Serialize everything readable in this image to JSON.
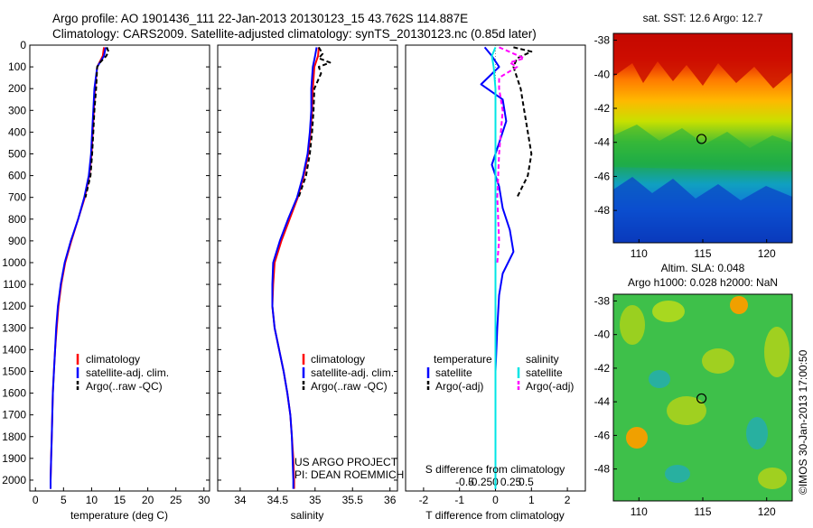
{
  "header": {
    "line1": "Argo profile: AO 1901436_111 22-Jan-2013 20130123_15 43.762S 114.887E",
    "line2": "Climatology: CARS2009. Satellite-adjusted climatology: synTS_20130123.nc (0.85d later)"
  },
  "colors": {
    "climatology": "#ff0000",
    "satellite": "#0000ff",
    "argo": "#000000",
    "sal_satellite": "#00e5e5",
    "sal_argo": "#ff00ff"
  },
  "chart_data": [
    {
      "type": "line",
      "name": "temperature-profile",
      "xlabel": "temperature (deg C)",
      "ylabel": "",
      "xlim": [
        -1,
        31
      ],
      "ylim": [
        2050,
        0
      ],
      "xticks": [
        0,
        5,
        10,
        15,
        20,
        25,
        30
      ],
      "yticks": [
        0,
        100,
        200,
        300,
        400,
        500,
        600,
        700,
        800,
        900,
        1000,
        1100,
        1200,
        1300,
        1400,
        1500,
        1600,
        1700,
        1800,
        1900,
        2000
      ],
      "legend": [
        "climatology",
        "satellite-adj. clim.",
        "Argo(..raw -QC)"
      ],
      "series": [
        {
          "name": "climatology",
          "color": "#ff0000",
          "dash": "",
          "points": [
            [
              12.2,
              10
            ],
            [
              12.0,
              50
            ],
            [
              11.0,
              100
            ],
            [
              10.6,
              200
            ],
            [
              10.4,
              300
            ],
            [
              10.2,
              400
            ],
            [
              10.0,
              500
            ],
            [
              9.6,
              600
            ],
            [
              8.8,
              700
            ],
            [
              7.6,
              800
            ],
            [
              6.4,
              900
            ],
            [
              5.3,
              1000
            ],
            [
              4.6,
              1100
            ],
            [
              4.1,
              1200
            ],
            [
              3.8,
              1300
            ],
            [
              3.5,
              1400
            ],
            [
              3.3,
              1500
            ],
            [
              3.1,
              1600
            ],
            [
              3.0,
              1700
            ],
            [
              2.9,
              1800
            ],
            [
              2.8,
              1900
            ],
            [
              2.7,
              2000
            ],
            [
              2.7,
              2040
            ]
          ]
        },
        {
          "name": "satellite-adj. clim.",
          "color": "#0000ff",
          "dash": "",
          "points": [
            [
              12.5,
              10
            ],
            [
              12.2,
              50
            ],
            [
              11.0,
              100
            ],
            [
              10.5,
              200
            ],
            [
              10.3,
              300
            ],
            [
              10.1,
              400
            ],
            [
              9.9,
              500
            ],
            [
              9.5,
              600
            ],
            [
              8.7,
              700
            ],
            [
              7.6,
              800
            ],
            [
              6.3,
              900
            ],
            [
              5.2,
              1000
            ],
            [
              4.5,
              1100
            ],
            [
              4.0,
              1200
            ],
            [
              3.7,
              1300
            ],
            [
              3.5,
              1400
            ],
            [
              3.3,
              1500
            ],
            [
              3.1,
              1600
            ],
            [
              3.0,
              1700
            ],
            [
              2.9,
              1800
            ],
            [
              2.8,
              1900
            ],
            [
              2.7,
              2000
            ],
            [
              2.7,
              2040
            ]
          ]
        },
        {
          "name": "Argo(..raw -QC)",
          "color": "#000000",
          "dash": "5,3",
          "points": [
            [
              12.7,
              10
            ],
            [
              13.0,
              30
            ],
            [
              12.6,
              50
            ],
            [
              11.5,
              80
            ],
            [
              11.0,
              100
            ],
            [
              10.8,
              200
            ],
            [
              10.5,
              300
            ],
            [
              10.3,
              400
            ],
            [
              10.1,
              500
            ],
            [
              9.8,
              600
            ],
            [
              8.9,
              700
            ]
          ]
        }
      ]
    },
    {
      "type": "line",
      "name": "salinity-profile",
      "xlabel": "salinity",
      "ylabel": "",
      "xlim": [
        33.7,
        36.1
      ],
      "ylim": [
        2050,
        0
      ],
      "xticks": [
        34,
        34.5,
        35,
        35.5,
        36
      ],
      "xtick_labels": [
        "34",
        "34.5",
        "35",
        "35.5",
        "36"
      ],
      "legend": [
        "climatology",
        "satellite-adj. clim.",
        "Argo(..raw -QC)"
      ],
      "annotation": [
        "US ARGO PROJECT",
        "PI: DEAN ROEMMICH"
      ],
      "series": [
        {
          "name": "climatology",
          "color": "#ff0000",
          "dash": "",
          "points": [
            [
              35.05,
              10
            ],
            [
              35.04,
              50
            ],
            [
              34.99,
              100
            ],
            [
              34.97,
              200
            ],
            [
              34.96,
              300
            ],
            [
              34.94,
              400
            ],
            [
              34.91,
              500
            ],
            [
              34.85,
              600
            ],
            [
              34.77,
              700
            ],
            [
              34.66,
              800
            ],
            [
              34.55,
              900
            ],
            [
              34.46,
              1000
            ],
            [
              34.44,
              1100
            ],
            [
              34.43,
              1200
            ],
            [
              34.46,
              1300
            ],
            [
              34.52,
              1400
            ],
            [
              34.58,
              1500
            ],
            [
              34.63,
              1600
            ],
            [
              34.67,
              1700
            ],
            [
              34.69,
              1800
            ],
            [
              34.71,
              1900
            ],
            [
              34.72,
              2000
            ],
            [
              34.72,
              2040
            ]
          ]
        },
        {
          "name": "satellite-adj. clim.",
          "color": "#0000ff",
          "dash": "",
          "points": [
            [
              35.02,
              10
            ],
            [
              35.0,
              50
            ],
            [
              34.97,
              100
            ],
            [
              34.95,
              200
            ],
            [
              34.95,
              300
            ],
            [
              34.93,
              400
            ],
            [
              34.9,
              500
            ],
            [
              34.84,
              600
            ],
            [
              34.76,
              700
            ],
            [
              34.64,
              800
            ],
            [
              34.53,
              900
            ],
            [
              34.44,
              1000
            ],
            [
              34.43,
              1100
            ],
            [
              34.43,
              1200
            ],
            [
              34.46,
              1300
            ],
            [
              34.52,
              1400
            ],
            [
              34.58,
              1500
            ],
            [
              34.63,
              1600
            ],
            [
              34.67,
              1700
            ],
            [
              34.69,
              1800
            ],
            [
              34.7,
              1900
            ],
            [
              34.71,
              2000
            ],
            [
              34.71,
              2040
            ]
          ]
        },
        {
          "name": "Argo(..raw -QC)",
          "color": "#000000",
          "dash": "5,3",
          "points": [
            [
              35.05,
              10
            ],
            [
              35.1,
              40
            ],
            [
              35.05,
              60
            ],
            [
              35.2,
              80
            ],
            [
              35.05,
              100
            ],
            [
              35.08,
              130
            ],
            [
              34.99,
              200
            ],
            [
              34.98,
              300
            ],
            [
              34.96,
              400
            ],
            [
              34.93,
              500
            ],
            [
              34.88,
              600
            ],
            [
              34.78,
              700
            ]
          ]
        }
      ]
    },
    {
      "type": "line",
      "name": "difference-profile",
      "xlabel": "T difference from climatology",
      "xlabel_top": "S difference from climatology",
      "xlim": [
        -2.5,
        2.5
      ],
      "ylim": [
        2050,
        0
      ],
      "xticks": [
        -2,
        -1,
        0,
        1,
        2
      ],
      "xtick_labels": [
        "-2",
        "-1",
        "0",
        "1",
        "2"
      ],
      "top_ticks": [
        -0.5,
        -0.25,
        0,
        0.25,
        0.5
      ],
      "top_tick_labels": [
        "-0.5",
        "-0.25",
        "0",
        "0.25",
        "0.5"
      ],
      "legend_titles": [
        "temperature",
        "salinity"
      ],
      "legend": [
        "satellite",
        "Argo(-adj)",
        "satellite",
        "Argo(-adj)"
      ],
      "series": [
        {
          "name": "temperature satellite",
          "color": "#0000ff",
          "dash": "",
          "points": [
            [
              -0.3,
              10
            ],
            [
              -0.1,
              50
            ],
            [
              0.1,
              100
            ],
            [
              -0.4,
              180
            ],
            [
              0.2,
              250
            ],
            [
              0.3,
              350
            ],
            [
              0.1,
              450
            ],
            [
              -0.1,
              550
            ],
            [
              0.1,
              650
            ],
            [
              0.2,
              750
            ],
            [
              0.4,
              850
            ],
            [
              0.5,
              950
            ],
            [
              0.2,
              1050
            ],
            [
              0.1,
              1150
            ],
            [
              0.05,
              1300
            ],
            [
              0.0,
              1500
            ],
            [
              0.0,
              1700
            ],
            [
              0.0,
              2040
            ]
          ]
        },
        {
          "name": "temperature Argo(-adj)",
          "color": "#000000",
          "dash": "5,3",
          "points": [
            [
              0.5,
              10
            ],
            [
              1.0,
              30
            ],
            [
              0.6,
              60
            ],
            [
              0.5,
              100
            ],
            [
              0.7,
              200
            ],
            [
              0.8,
              300
            ],
            [
              0.9,
              400
            ],
            [
              1.0,
              500
            ],
            [
              0.9,
              600
            ],
            [
              0.6,
              700
            ]
          ]
        },
        {
          "name": "salinity satellite",
          "color": "#00e5e5",
          "dash": "",
          "points": [
            [
              0.0,
              10
            ],
            [
              -0.1,
              50
            ],
            [
              -0.05,
              100
            ],
            [
              0.0,
              200
            ],
            [
              0.0,
              400
            ],
            [
              0.0,
              800
            ],
            [
              0.0,
              1200
            ],
            [
              0.0,
              1600
            ],
            [
              0.0,
              2040
            ]
          ]
        },
        {
          "name": "salinity Argo(-adj)",
          "color": "#ff00ff",
          "dash": "5,3",
          "points": [
            [
              0.1,
              10
            ],
            [
              0.8,
              60
            ],
            [
              0.4,
              80
            ],
            [
              0.6,
              100
            ],
            [
              0.1,
              150
            ],
            [
              0.1,
              200
            ],
            [
              0.2,
              300
            ],
            [
              0.1,
              500
            ],
            [
              0.05,
              700
            ],
            [
              0.1,
              900
            ],
            [
              0.05,
              1000
            ]
          ]
        }
      ]
    }
  ],
  "sst_map": {
    "title": "sat. SST: 12.6  Argo: 12.7",
    "xticks": [
      110,
      115,
      120
    ],
    "yticks": [
      "-38",
      "-40",
      "-42",
      "-44",
      "-46",
      "-48"
    ],
    "marker": [
      114.9,
      -43.8
    ]
  },
  "sla_map": {
    "title_line1": "Altim. SLA: 0.048",
    "title_line2": "Argo h1000: 0.028  h2000: NaN",
    "xticks": [
      110,
      115,
      120
    ],
    "yticks": [
      "-38",
      "-40",
      "-42",
      "-44",
      "-46",
      "-48"
    ],
    "marker": [
      114.9,
      -43.8
    ]
  },
  "credit": "©IMOS 30-Jan-2013 17:00:50"
}
